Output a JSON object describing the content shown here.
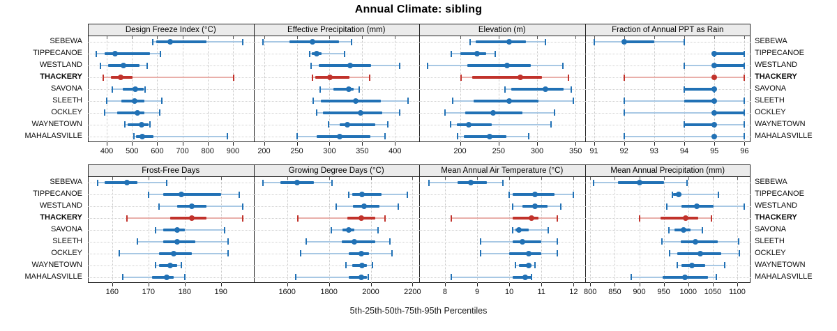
{
  "title": "Annual Climate: sibling",
  "footer": "5th-25th-50th-75th-95th Percentiles",
  "highlight_site": "THACKERY",
  "sites": [
    "SEBEWA",
    "TIPPECANOE",
    "WESTLAND",
    "THACKERY",
    "SAVONA",
    "SLEETH",
    "OCKLEY",
    "WAYNETOWN",
    "MAHALASVILLE"
  ],
  "colors": {
    "series": "#2171B5",
    "series_light": "#A8C8E4",
    "highlight": "#C1322B",
    "highlight_light": "#E9AFAA",
    "strip_bg": "#EBEBEB",
    "frame": "#222222",
    "grid": "#C8C8C8"
  },
  "chart_data": [
    {
      "type": "interval-dotplot",
      "title": "Design Freeze Index (°C)",
      "percentiles": [
        5,
        25,
        50,
        75,
        95
      ],
      "xlim": [
        325,
        982
      ],
      "ticks": [
        400,
        500,
        600,
        700,
        800,
        900
      ],
      "series": [
        {
          "site": "SEBEWA",
          "values": [
            582,
            596,
            651,
            796,
            939
          ]
        },
        {
          "site": "TIPPECANOE",
          "values": [
            358,
            390,
            432,
            570,
            612
          ]
        },
        {
          "site": "WESTLAND",
          "values": [
            376,
            406,
            465,
            530,
            561
          ]
        },
        {
          "site": "THACKERY",
          "values": [
            385,
            416,
            455,
            503,
            902
          ]
        },
        {
          "site": "SAVONA",
          "values": [
            423,
            464,
            512,
            546,
            553
          ]
        },
        {
          "site": "SLEETH",
          "values": [
            400,
            457,
            510,
            549,
            618
          ]
        },
        {
          "site": "OCKLEY",
          "values": [
            390,
            441,
            520,
            549,
            611
          ]
        },
        {
          "site": "WAYNETOWN",
          "values": [
            471,
            483,
            539,
            565,
            571
          ]
        },
        {
          "site": "MAHALASVILLE",
          "values": [
            508,
            515,
            541,
            585,
            878
          ]
        }
      ]
    },
    {
      "type": "interval-dotplot",
      "title": "Effective Precipitation (mm)",
      "percentiles": [
        5,
        25,
        50,
        75,
        95
      ],
      "xlim": [
        184,
        437
      ],
      "ticks": [
        200,
        250,
        300,
        350,
        400
      ],
      "series": [
        {
          "site": "SEBEWA",
          "values": [
            198,
            239,
            274,
            315,
            334
          ]
        },
        {
          "site": "TIPPECANOE",
          "values": [
            270,
            273,
            280,
            288,
            323
          ]
        },
        {
          "site": "WESTLAND",
          "values": [
            272,
            284,
            332,
            364,
            407
          ]
        },
        {
          "site": "THACKERY",
          "values": [
            274,
            278,
            301,
            331,
            361
          ]
        },
        {
          "site": "SAVONA",
          "values": [
            286,
            306,
            329,
            337,
            345
          ]
        },
        {
          "site": "SLEETH",
          "values": [
            275,
            287,
            340,
            378,
            420
          ]
        },
        {
          "site": "OCKLEY",
          "values": [
            280,
            290,
            347,
            380,
            407
          ]
        },
        {
          "site": "WAYNETOWN",
          "values": [
            298,
            315,
            327,
            370,
            389
          ]
        },
        {
          "site": "MAHALASVILLE",
          "values": [
            250,
            280,
            315,
            363,
            385
          ]
        }
      ]
    },
    {
      "type": "interval-dotplot",
      "title": "Elevation (m)",
      "percentiles": [
        5,
        25,
        50,
        75,
        95
      ],
      "xlim": [
        147,
        362
      ],
      "ticks": [
        200,
        250,
        300,
        350
      ],
      "series": [
        {
          "site": "SEBEWA",
          "values": [
            213,
            220,
            264,
            286,
            311
          ]
        },
        {
          "site": "TIPPECANOE",
          "values": [
            189,
            200,
            222,
            234,
            246
          ]
        },
        {
          "site": "WESTLAND",
          "values": [
            158,
            209,
            261,
            292,
            333
          ]
        },
        {
          "site": "THACKERY",
          "values": [
            201,
            216,
            278,
            306,
            341
          ]
        },
        {
          "site": "SAVONA",
          "values": [
            258,
            266,
            311,
            334,
            344
          ]
        },
        {
          "site": "SLEETH",
          "values": [
            190,
            218,
            264,
            302,
            347
          ]
        },
        {
          "site": "OCKLEY",
          "values": [
            180,
            207,
            243,
            281,
            323
          ]
        },
        {
          "site": "WAYNETOWN",
          "values": [
            188,
            196,
            211,
            241,
            318
          ]
        },
        {
          "site": "MAHALASVILLE",
          "values": [
            197,
            205,
            238,
            260,
            289
          ]
        }
      ]
    },
    {
      "type": "interval-dotplot",
      "title": "Fraction of Annual PPT as Rain",
      "percentiles": [
        5,
        25,
        50,
        75,
        95
      ],
      "xlim": [
        90.7,
        96.2
      ],
      "ticks": [
        91,
        92,
        93,
        94,
        95,
        96
      ],
      "series": [
        {
          "site": "SEBEWA",
          "values": [
            91,
            92,
            92,
            93,
            94
          ]
        },
        {
          "site": "TIPPECANOE",
          "values": [
            95,
            95,
            95,
            96,
            96
          ]
        },
        {
          "site": "WESTLAND",
          "values": [
            94,
            95,
            95,
            96,
            96
          ]
        },
        {
          "site": "THACKERY",
          "values": [
            92,
            95,
            95,
            95,
            96
          ]
        },
        {
          "site": "SAVONA",
          "values": [
            94,
            94,
            95,
            95,
            95
          ]
        },
        {
          "site": "SLEETH",
          "values": [
            92,
            94,
            95,
            95,
            96
          ]
        },
        {
          "site": "OCKLEY",
          "values": [
            92,
            95,
            95,
            96,
            96
          ]
        },
        {
          "site": "WAYNETOWN",
          "values": [
            94,
            94,
            95,
            95,
            96
          ]
        },
        {
          "site": "MAHALASVILLE",
          "values": [
            92,
            95,
            95,
            95,
            96
          ]
        }
      ]
    },
    {
      "type": "interval-dotplot",
      "title": "Frost-Free Days",
      "percentiles": [
        5,
        25,
        50,
        75,
        95
      ],
      "xlim": [
        153.3,
        199
      ],
      "ticks": [
        160,
        170,
        180,
        190
      ],
      "series": [
        {
          "site": "SEBEWA",
          "values": [
            156,
            158,
            164,
            167,
            175
          ]
        },
        {
          "site": "TIPPECANOE",
          "values": [
            170,
            174,
            179,
            190,
            195
          ]
        },
        {
          "site": "WESTLAND",
          "values": [
            173,
            178,
            182,
            186,
            196
          ]
        },
        {
          "site": "THACKERY",
          "values": [
            164,
            176,
            182,
            186,
            196
          ]
        },
        {
          "site": "SAVONA",
          "values": [
            172,
            174,
            178,
            180,
            191
          ]
        },
        {
          "site": "SLEETH",
          "values": [
            167,
            174,
            178,
            183,
            192
          ]
        },
        {
          "site": "OCKLEY",
          "values": [
            162,
            173,
            177,
            182,
            192
          ]
        },
        {
          "site": "WAYNETOWN",
          "values": [
            172,
            173,
            176,
            178,
            179
          ]
        },
        {
          "site": "MAHALASVILLE",
          "values": [
            163,
            171,
            175,
            177,
            180
          ]
        }
      ]
    },
    {
      "type": "interval-dotplot",
      "title": "Growing Degree Days (°C)",
      "percentiles": [
        5,
        25,
        50,
        75,
        95
      ],
      "xlim": [
        1439,
        2232
      ],
      "ticks": [
        1600,
        1800,
        2000,
        2200
      ],
      "series": [
        {
          "site": "SEBEWA",
          "values": [
            1483,
            1569,
            1646,
            1729,
            1813
          ]
        },
        {
          "site": "TIPPECANOE",
          "values": [
            1893,
            1910,
            1957,
            2053,
            2174
          ]
        },
        {
          "site": "WESTLAND",
          "values": [
            1833,
            1915,
            1967,
            2042,
            2133
          ]
        },
        {
          "site": "THACKERY",
          "values": [
            1652,
            1888,
            1956,
            2020,
            2069
          ]
        },
        {
          "site": "SAVONA",
          "values": [
            1811,
            1866,
            1896,
            1921,
            2036
          ]
        },
        {
          "site": "SLEETH",
          "values": [
            1690,
            1860,
            1921,
            2023,
            2093
          ]
        },
        {
          "site": "OCKLEY",
          "values": [
            1663,
            1893,
            1956,
            1992,
            2100
          ]
        },
        {
          "site": "WAYNETOWN",
          "values": [
            1882,
            1910,
            1959,
            1981,
            2009
          ]
        },
        {
          "site": "MAHALASVILLE",
          "values": [
            1641,
            1893,
            1956,
            1981,
            1987
          ]
        }
      ]
    },
    {
      "type": "interval-dotplot",
      "title": "Mean Annual Air Temperature (°C)",
      "percentiles": [
        5,
        25,
        50,
        75,
        95
      ],
      "xlim": [
        7.2,
        12.35
      ],
      "ticks": [
        8,
        9,
        10,
        11,
        12
      ],
      "series": [
        {
          "site": "SEBEWA",
          "values": [
            7.5,
            8.4,
            8.8,
            9.3,
            9.8
          ]
        },
        {
          "site": "TIPPECANOE",
          "values": [
            10.0,
            10.1,
            10.8,
            11.4,
            12.0
          ]
        },
        {
          "site": "WESTLAND",
          "values": [
            10.1,
            10.4,
            10.8,
            11.2,
            11.6
          ]
        },
        {
          "site": "THACKERY",
          "values": [
            8.2,
            10.1,
            10.7,
            10.9,
            11.5
          ]
        },
        {
          "site": "SAVONA",
          "values": [
            10.1,
            10.2,
            10.3,
            10.6,
            11.2
          ]
        },
        {
          "site": "SLEETH",
          "values": [
            9.1,
            10.1,
            10.4,
            11.0,
            11.5
          ]
        },
        {
          "site": "OCKLEY",
          "values": [
            9.1,
            10.0,
            10.6,
            11.0,
            11.5
          ]
        },
        {
          "site": "WAYNETOWN",
          "values": [
            10.2,
            10.3,
            10.6,
            10.7,
            10.8
          ]
        },
        {
          "site": "MAHALASVILLE",
          "values": [
            8.2,
            10.1,
            10.5,
            10.7,
            10.7
          ]
        }
      ]
    },
    {
      "type": "interval-dotplot",
      "title": "Mean Annual Precipitation (mm)",
      "percentiles": [
        5,
        25,
        50,
        75,
        95
      ],
      "xlim": [
        789,
        1127
      ],
      "ticks": [
        800,
        850,
        900,
        950,
        1000,
        1050,
        1100
      ],
      "series": [
        {
          "site": "SEBEWA",
          "values": [
            807,
            857,
            901,
            950,
            997
          ]
        },
        {
          "site": "TIPPECANOE",
          "values": [
            967,
            969,
            981,
            986,
            1062
          ]
        },
        {
          "site": "WESTLAND",
          "values": [
            956,
            986,
            1017,
            1052,
            1114
          ]
        },
        {
          "site": "THACKERY",
          "values": [
            901,
            943,
            995,
            1021,
            1047
          ]
        },
        {
          "site": "SAVONA",
          "values": [
            961,
            972,
            990,
            1004,
            1029
          ]
        },
        {
          "site": "SLEETH",
          "values": [
            946,
            984,
            1015,
            1060,
            1103
          ]
        },
        {
          "site": "OCKLEY",
          "values": [
            962,
            977,
            1025,
            1068,
            1104
          ]
        },
        {
          "site": "WAYNETOWN",
          "values": [
            978,
            986,
            1007,
            1035,
            1074
          ]
        },
        {
          "site": "MAHALASVILLE",
          "values": [
            883,
            947,
            993,
            1040,
            1057
          ]
        }
      ]
    }
  ]
}
